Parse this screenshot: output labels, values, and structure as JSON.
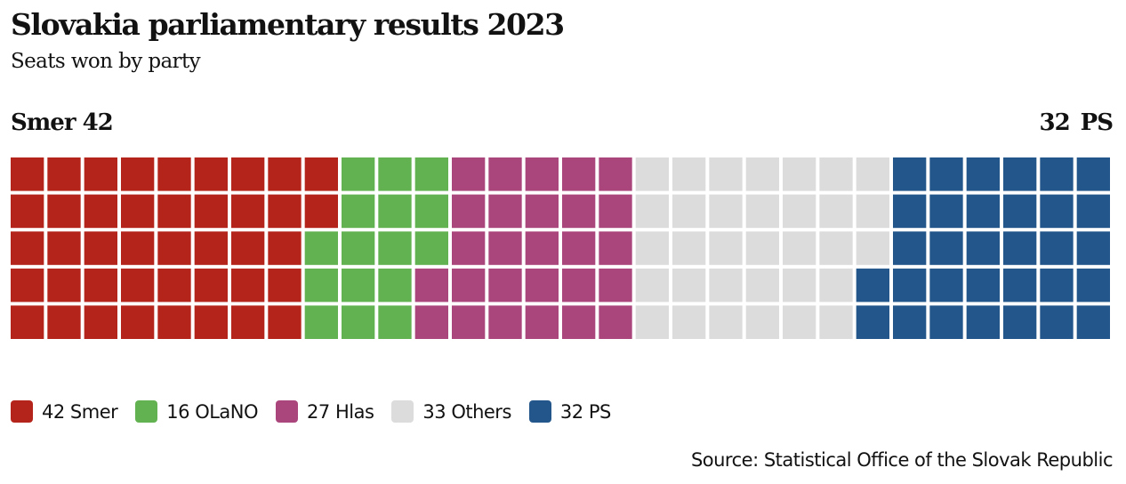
{
  "chart_data": {
    "type": "waffle",
    "title": "Slovakia parliamentary results 2023",
    "subtitle": "Seats won by party",
    "total_seats": 150,
    "rows": 5,
    "columns": 30,
    "fill_order": "column-major, top to bottom",
    "categories": [
      "Smer",
      "OLaNO",
      "Hlas",
      "Others",
      "PS"
    ],
    "values": [
      42,
      16,
      27,
      33,
      32
    ],
    "colors": [
      "#b4241b",
      "#62b251",
      "#ab467c",
      "#dcdcdc",
      "#23568a"
    ],
    "left_label": {
      "party": "Smer",
      "seats": "42"
    },
    "right_label": {
      "seats": "32",
      "party": "PS"
    },
    "legend": [
      {
        "value": "42",
        "name": "Smer",
        "color": "#b4241b"
      },
      {
        "value": "16",
        "name": "OLaNO",
        "color": "#62b251"
      },
      {
        "value": "27",
        "name": "Hlas",
        "color": "#ab467c"
      },
      {
        "value": "33",
        "name": "Others",
        "color": "#dcdcdc"
      },
      {
        "value": "32",
        "name": "PS",
        "color": "#23568a"
      }
    ],
    "legend_position": "bottom-left",
    "source": "Source: Statistical Office of the Slovak Republic"
  }
}
